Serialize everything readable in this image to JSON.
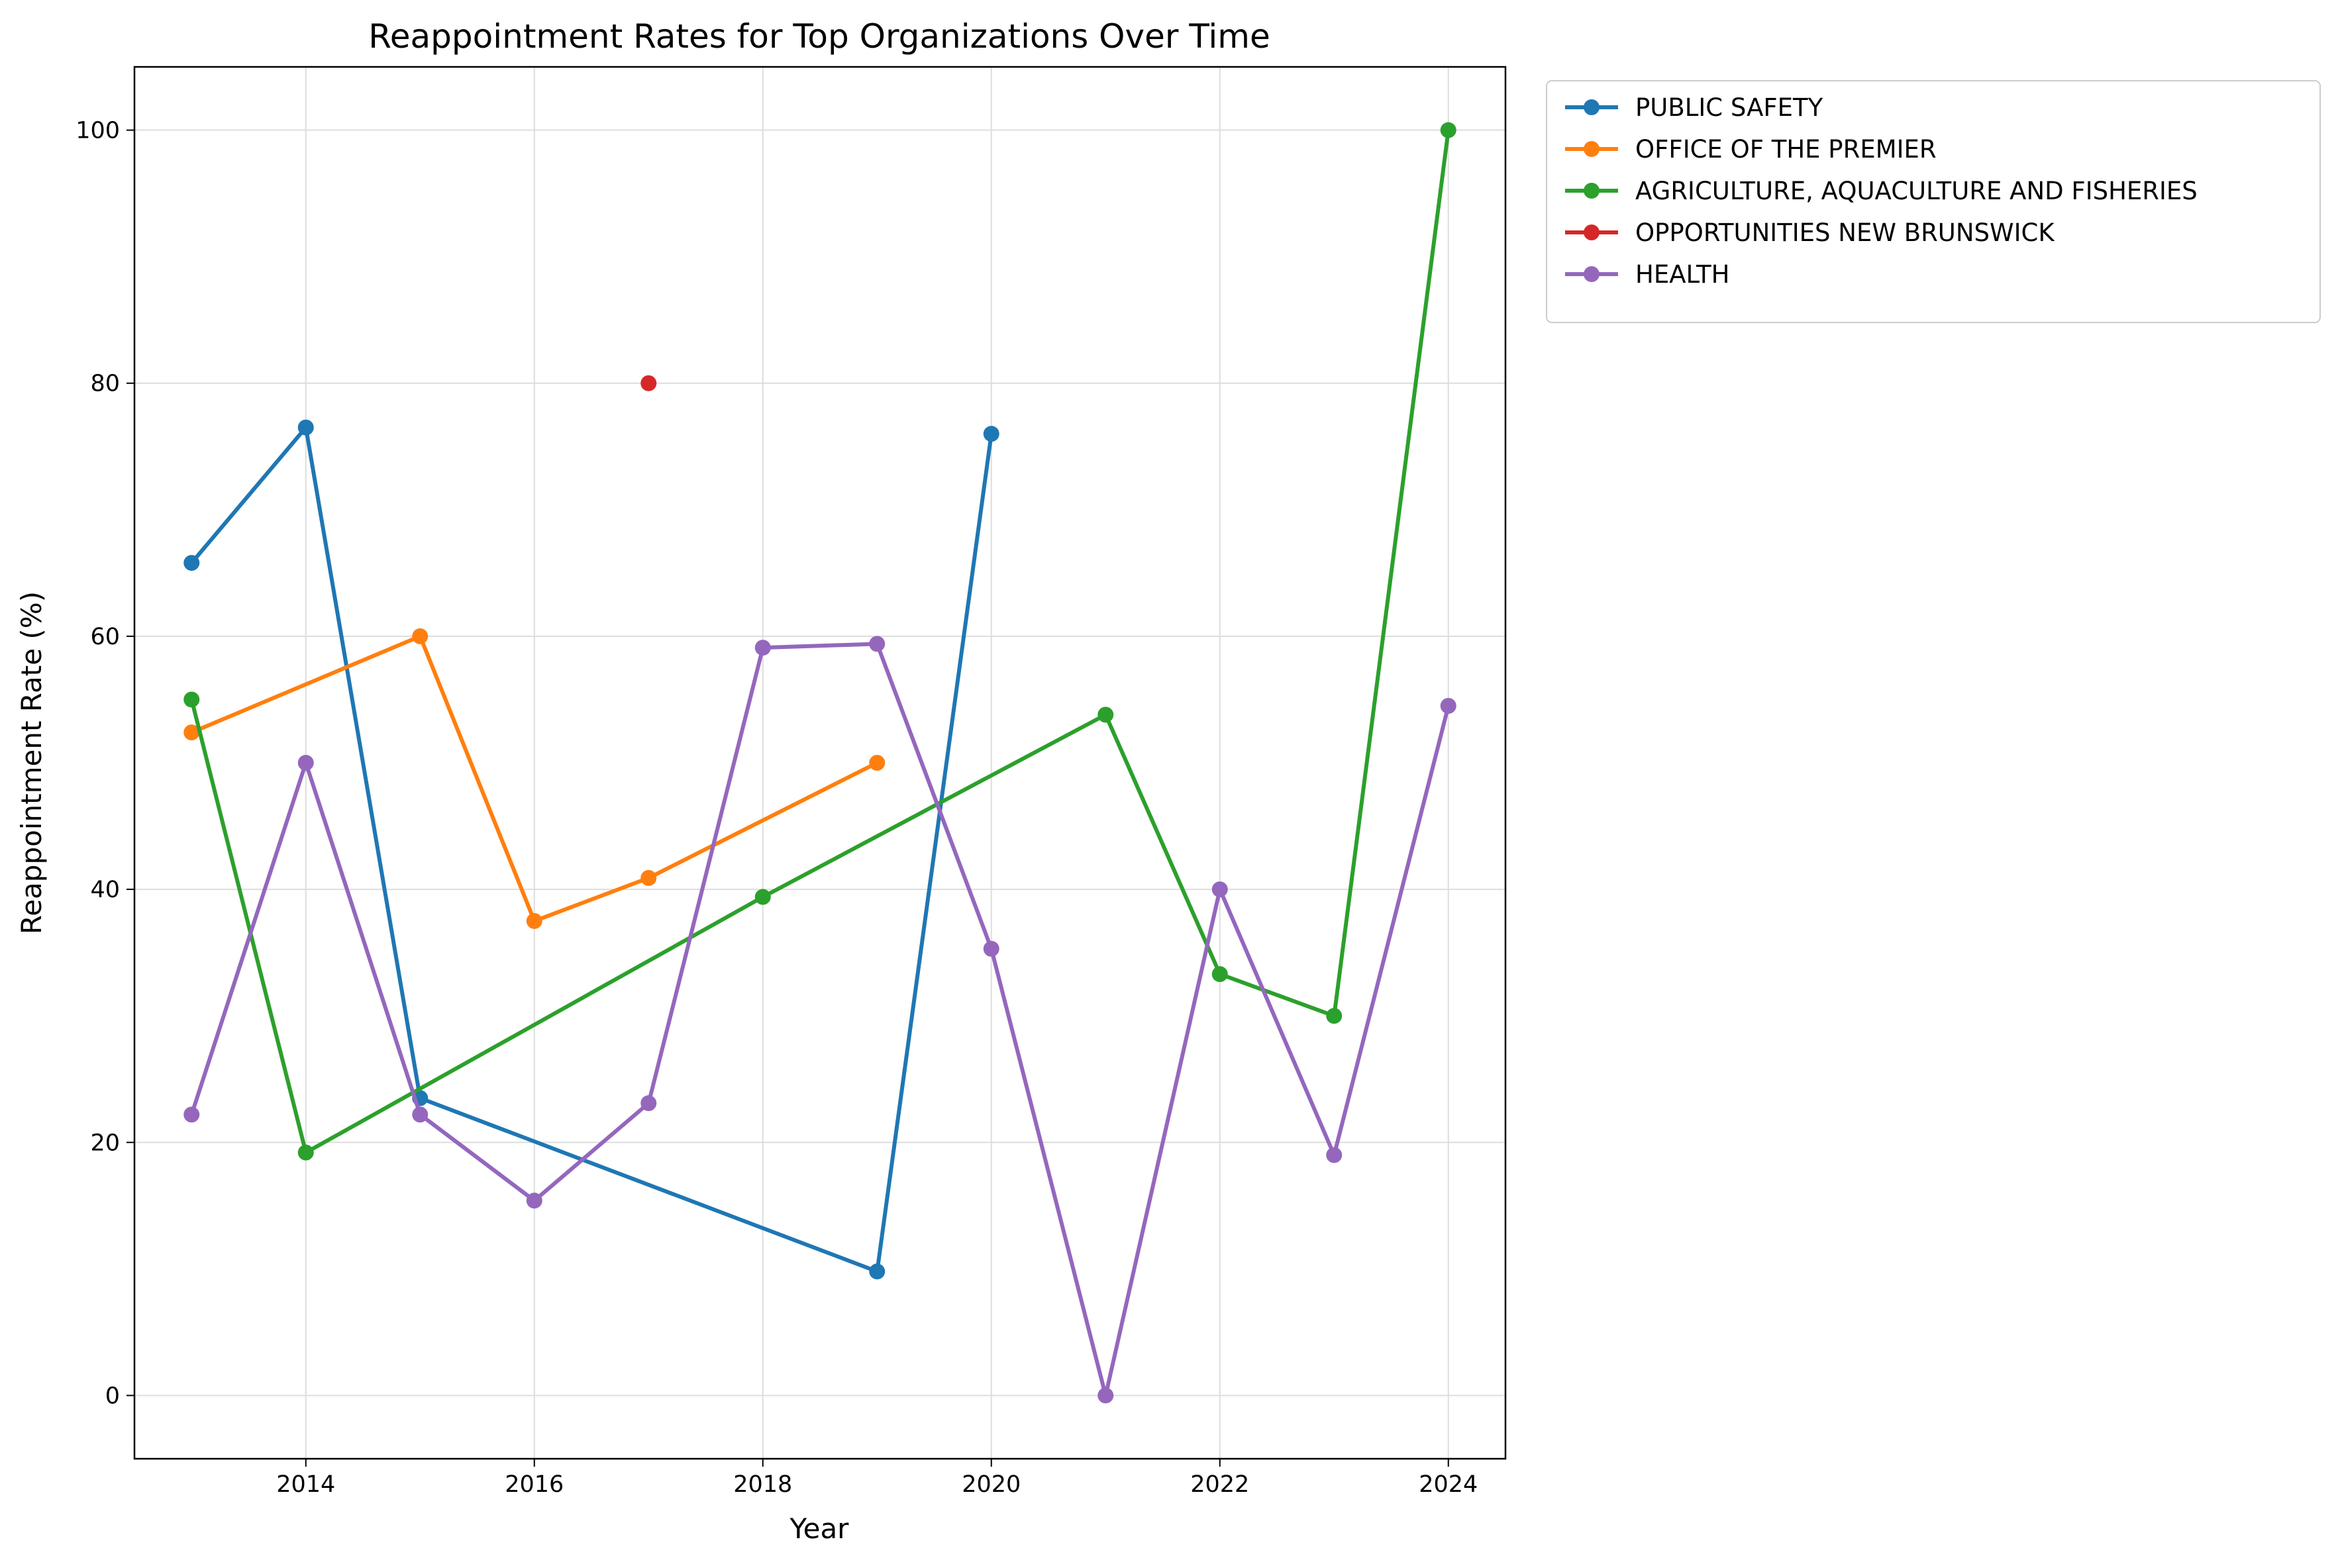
{
  "chart_data": {
    "type": "line",
    "title": "Reappointment Rates for Top Organizations Over Time",
    "xlabel": "Year",
    "ylabel": "Reappointment Rate (%)",
    "xlim": [
      2012.5,
      2024.5
    ],
    "ylim": [
      -5,
      105
    ],
    "x_ticks": [
      2014,
      2016,
      2018,
      2020,
      2022,
      2024
    ],
    "x_tick_labels": [
      "2014",
      "2016",
      "2018",
      "2020",
      "2022",
      "2024"
    ],
    "y_ticks": [
      0,
      20,
      40,
      60,
      80,
      100
    ],
    "y_tick_labels": [
      "0",
      "20",
      "40",
      "60",
      "80",
      "100"
    ],
    "grid": true,
    "legend_position": "outside upper right",
    "series": [
      {
        "name": "PUBLIC SAFETY",
        "color": "#1f77b4",
        "points": [
          [
            2013,
            65.8
          ],
          [
            2014,
            76.5
          ],
          [
            2015,
            23.5
          ],
          [
            2019,
            9.8
          ],
          [
            2020,
            76.0
          ]
        ]
      },
      {
        "name": "OFFICE OF THE PREMIER",
        "color": "#ff7f0e",
        "points": [
          [
            2013,
            52.4
          ],
          [
            2015,
            60.0
          ],
          [
            2016,
            37.5
          ],
          [
            2017,
            40.9
          ],
          [
            2019,
            50.0
          ]
        ]
      },
      {
        "name": "AGRICULTURE, AQUACULTURE AND FISHERIES",
        "color": "#2ca02c",
        "points": [
          [
            2013,
            55.0
          ],
          [
            2014,
            19.2
          ],
          [
            2018,
            39.4
          ],
          [
            2021,
            53.8
          ],
          [
            2022,
            33.3
          ],
          [
            2023,
            30.0
          ],
          [
            2024,
            100.0
          ]
        ]
      },
      {
        "name": "OPPORTUNITIES NEW BRUNSWICK",
        "color": "#d62728",
        "points": [
          [
            2017,
            80.0
          ]
        ]
      },
      {
        "name": "HEALTH",
        "color": "#9467bd",
        "points": [
          [
            2013,
            22.2
          ],
          [
            2014,
            50.0
          ],
          [
            2015,
            22.2
          ],
          [
            2016,
            15.4
          ],
          [
            2017,
            23.1
          ],
          [
            2018,
            59.1
          ],
          [
            2019,
            59.4
          ],
          [
            2020,
            35.3
          ],
          [
            2021,
            0.0
          ],
          [
            2022,
            40.0
          ],
          [
            2023,
            19.0
          ],
          [
            2024,
            54.5
          ]
        ]
      }
    ]
  }
}
